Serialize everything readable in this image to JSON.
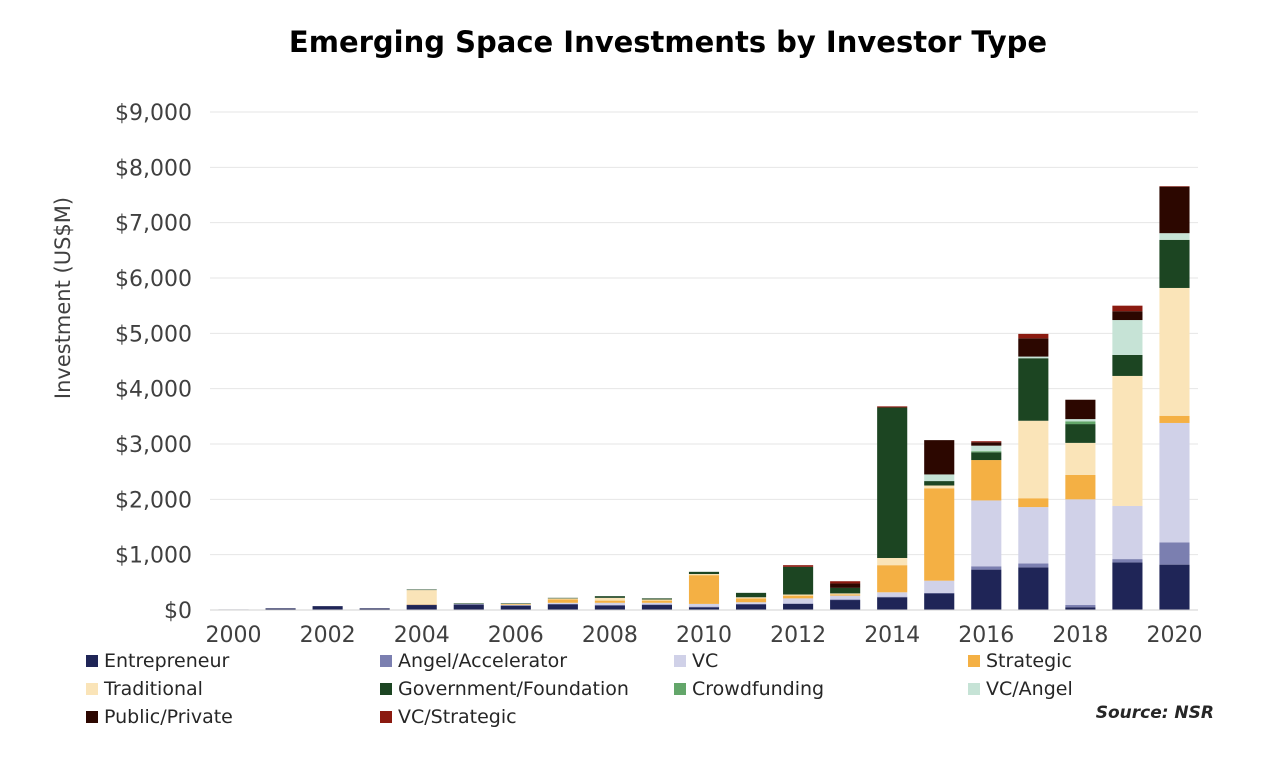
{
  "chart_data": {
    "type": "bar",
    "stacked": true,
    "title": "Emerging Space Investments by Investor Type",
    "ylabel": "Investment (US$M)",
    "xlabel": "",
    "source": "Source: NSR",
    "ylim": [
      0,
      9000
    ],
    "yticks": [
      0,
      1000,
      2000,
      3000,
      4000,
      5000,
      6000,
      7000,
      8000,
      9000
    ],
    "ytick_labels": [
      "$0",
      "$1,000",
      "$2,000",
      "$3,000",
      "$4,000",
      "$5,000",
      "$6,000",
      "$7,000",
      "$8,000",
      "$9,000"
    ],
    "categories": [
      "2000",
      "2001",
      "2002",
      "2003",
      "2004",
      "2005",
      "2006",
      "2007",
      "2008",
      "2009",
      "2010",
      "2011",
      "2012",
      "2013",
      "2014",
      "2015",
      "2016",
      "2017",
      "2018",
      "2019",
      "2020"
    ],
    "xtick_labels": [
      "2000",
      "",
      "2002",
      "",
      "2004",
      "",
      "2006",
      "",
      "2008",
      "",
      "2010",
      "",
      "2012",
      "",
      "2014",
      "",
      "2016",
      "",
      "2018",
      "",
      "2020"
    ],
    "grid": "horizontal",
    "legend_position": "bottom",
    "series": [
      {
        "name": "Entrepreneur",
        "color": "#1f2557",
        "values": [
          10,
          30,
          70,
          30,
          90,
          100,
          80,
          100,
          80,
          90,
          50,
          100,
          110,
          180,
          230,
          300,
          730,
          770,
          50,
          860,
          820
        ]
      },
      {
        "name": "Angel/Accelerator",
        "color": "#7b7fb0",
        "values": [
          0,
          0,
          0,
          0,
          0,
          0,
          0,
          10,
          10,
          10,
          10,
          10,
          10,
          10,
          10,
          10,
          60,
          70,
          40,
          60,
          400
        ]
      },
      {
        "name": "VC",
        "color": "#d0d1e8",
        "values": [
          0,
          0,
          0,
          0,
          10,
          10,
          10,
          20,
          40,
          30,
          50,
          30,
          90,
          70,
          80,
          220,
          1190,
          1020,
          1910,
          960,
          2160
        ]
      },
      {
        "name": "Strategic",
        "color": "#f4b044",
        "values": [
          0,
          0,
          0,
          0,
          10,
          0,
          10,
          60,
          40,
          40,
          520,
          70,
          50,
          20,
          490,
          1670,
          730,
          160,
          440,
          0,
          130
        ]
      },
      {
        "name": "Traditional",
        "color": "#fae4b8",
        "values": [
          0,
          0,
          0,
          0,
          250,
          0,
          10,
          20,
          50,
          20,
          20,
          20,
          20,
          20,
          130,
          50,
          0,
          1400,
          580,
          2350,
          2310
        ]
      },
      {
        "name": "Government/Foundation",
        "color": "#1c4522",
        "values": [
          0,
          0,
          0,
          0,
          10,
          10,
          10,
          10,
          30,
          20,
          40,
          80,
          500,
          100,
          2720,
          80,
          140,
          1130,
          340,
          380,
          870
        ]
      },
      {
        "name": "Crowdfunding",
        "color": "#63a66a",
        "values": [
          0,
          0,
          0,
          0,
          0,
          0,
          0,
          0,
          0,
          0,
          0,
          0,
          0,
          0,
          0,
          0,
          20,
          0,
          50,
          0,
          0
        ]
      },
      {
        "name": "VC/Angel",
        "color": "#c6e3d6",
        "values": [
          0,
          0,
          0,
          0,
          0,
          0,
          0,
          0,
          0,
          0,
          0,
          0,
          0,
          0,
          0,
          120,
          100,
          30,
          40,
          630,
          120
        ]
      },
      {
        "name": "Public/Private",
        "color": "#2c0700",
        "values": [
          0,
          0,
          0,
          0,
          0,
          0,
          0,
          0,
          0,
          0,
          0,
          0,
          0,
          80,
          0,
          620,
          60,
          330,
          350,
          160,
          840
        ]
      },
      {
        "name": "VC/Strategic",
        "color": "#8b1a10",
        "values": [
          0,
          0,
          0,
          0,
          0,
          0,
          0,
          0,
          0,
          0,
          0,
          0,
          30,
          40,
          20,
          0,
          20,
          80,
          0,
          100,
          10
        ]
      }
    ]
  }
}
